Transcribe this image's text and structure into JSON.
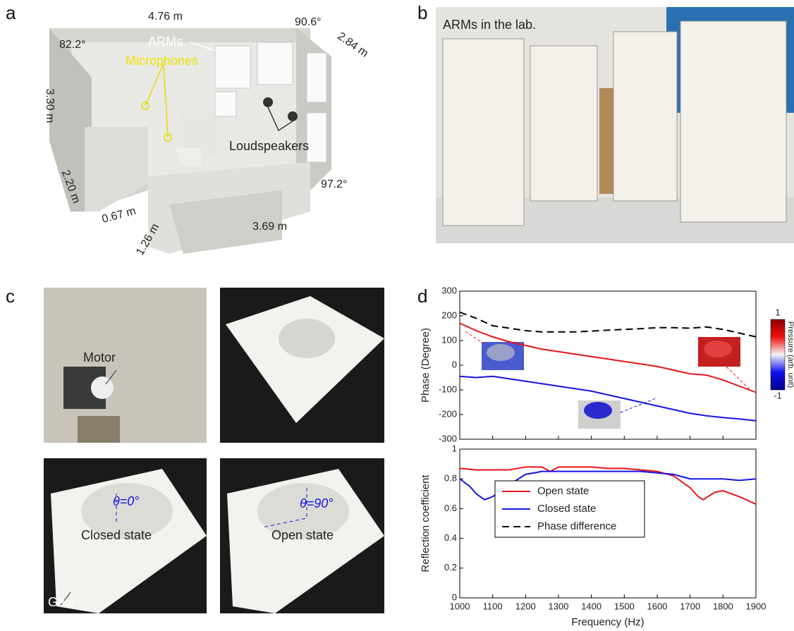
{
  "panels": {
    "a": {
      "label": "a",
      "dimensions": [
        "4.76 m",
        "90.6°",
        "2.84 m",
        "82.2°",
        "3.30 m",
        "2.20 m",
        "97.2°",
        "0.67 m",
        "1.26 m",
        "3.69 m"
      ],
      "annotations": [
        "ARMs",
        "Microphones",
        "Loudspeakers"
      ]
    },
    "b": {
      "label": "b",
      "caption": "ARMs in the lab."
    },
    "c": {
      "label": "c",
      "annotations": [
        "Motor",
        "θ=0°",
        "Closed state",
        "θ=90°",
        "Open state",
        "Gear"
      ]
    },
    "d": {
      "label": "d"
    }
  },
  "chart_data": [
    {
      "type": "line",
      "y_label": "Phase (Degree)",
      "x": [
        1000,
        1050,
        1100,
        1150,
        1200,
        1250,
        1300,
        1350,
        1400,
        1450,
        1500,
        1550,
        1600,
        1650,
        1700,
        1750,
        1800,
        1850,
        1900
      ],
      "series": [
        {
          "name": "Open state",
          "color": "#e8141b",
          "values": [
            170,
            140,
            115,
            95,
            80,
            65,
            55,
            45,
            35,
            25,
            15,
            5,
            -5,
            -20,
            -35,
            -40,
            -60,
            -85,
            -110
          ]
        },
        {
          "name": "Closed state",
          "color": "#1515e0",
          "values": [
            -45,
            -50,
            -45,
            -55,
            -65,
            -75,
            -85,
            -95,
            -105,
            -120,
            -135,
            -150,
            -165,
            -180,
            -195,
            -205,
            -212,
            -218,
            -225
          ]
        },
        {
          "name": "Phase difference",
          "color": "#000000",
          "dashed": true,
          "values": [
            215,
            190,
            160,
            150,
            140,
            135,
            135,
            135,
            138,
            142,
            145,
            148,
            152,
            152,
            150,
            155,
            145,
            130,
            115
          ]
        }
      ],
      "xlim": [
        1000,
        1900
      ],
      "xticks": [
        1000,
        1100,
        1200,
        1300,
        1400,
        1500,
        1600,
        1700,
        1800,
        1900
      ],
      "ylim": [
        -300,
        300
      ],
      "yticks": [
        -300,
        -200,
        -100,
        0,
        100,
        200,
        300
      ],
      "colorbar": {
        "label": "Pressure (arb. unit)",
        "ticks": [
          1,
          -1
        ]
      }
    },
    {
      "type": "line",
      "y_label": "Reflection coefficient",
      "x_label": "Frequency (Hz)",
      "legend": "lower left",
      "x": [
        1000,
        1030,
        1050,
        1075,
        1100,
        1150,
        1200,
        1250,
        1275,
        1300,
        1350,
        1400,
        1450,
        1500,
        1550,
        1600,
        1650,
        1700,
        1725,
        1740,
        1775,
        1800,
        1850,
        1900
      ],
      "series": [
        {
          "color": "#e8141b",
          "values": [
            0.87,
            0.865,
            0.86,
            0.86,
            0.86,
            0.86,
            0.88,
            0.88,
            0.85,
            0.88,
            0.88,
            0.88,
            0.87,
            0.87,
            0.86,
            0.85,
            0.82,
            0.74,
            0.68,
            0.66,
            0.71,
            0.72,
            0.68,
            0.63
          ]
        },
        {
          "color": "#1515e0",
          "values": [
            0.8,
            0.75,
            0.7,
            0.66,
            0.68,
            0.76,
            0.83,
            0.85,
            0.85,
            0.85,
            0.85,
            0.85,
            0.85,
            0.85,
            0.85,
            0.84,
            0.83,
            0.8,
            0.8,
            0.8,
            0.8,
            0.8,
            0.79,
            0.8
          ]
        }
      ],
      "xlim": [
        1000,
        1900
      ],
      "xticks": [
        1000,
        1100,
        1200,
        1300,
        1400,
        1500,
        1600,
        1700,
        1800,
        1900
      ],
      "ylim": [
        0,
        1
      ],
      "yticks": [
        0,
        0.2,
        0.4,
        0.6,
        0.8,
        1
      ]
    }
  ]
}
